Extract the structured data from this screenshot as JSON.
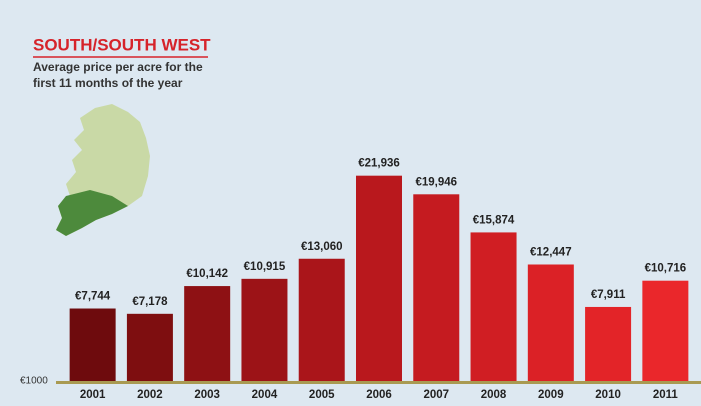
{
  "chart_data": {
    "type": "bar",
    "title": "SOUTH/SOUTH WEST",
    "subtitle": [
      "Average price per acre for the",
      "first 11 months of the year"
    ],
    "y_axis_label": "€1000",
    "categories": [
      "2001",
      "2002",
      "2003",
      "2004",
      "2005",
      "2006",
      "2007",
      "2008",
      "2009",
      "2010",
      "2011"
    ],
    "values": [
      7744,
      7178,
      10142,
      10915,
      13060,
      21936,
      19946,
      15874,
      12447,
      7911,
      10716
    ],
    "value_labels": [
      "€7,744",
      "€7,178",
      "€10,142",
      "€10,915",
      "€13,060",
      "€21,936",
      "€19,946",
      "€15,874",
      "€12,447",
      "€7,911",
      "€10,716"
    ],
    "colors": [
      "#6e0b0d",
      "#7e0e10",
      "#8e1114",
      "#9c1317",
      "#aa151a",
      "#b9181d",
      "#c51b20",
      "#d01e23",
      "#db2126",
      "#e32428",
      "#ea272b"
    ],
    "ylim": [
      0,
      25000
    ]
  }
}
